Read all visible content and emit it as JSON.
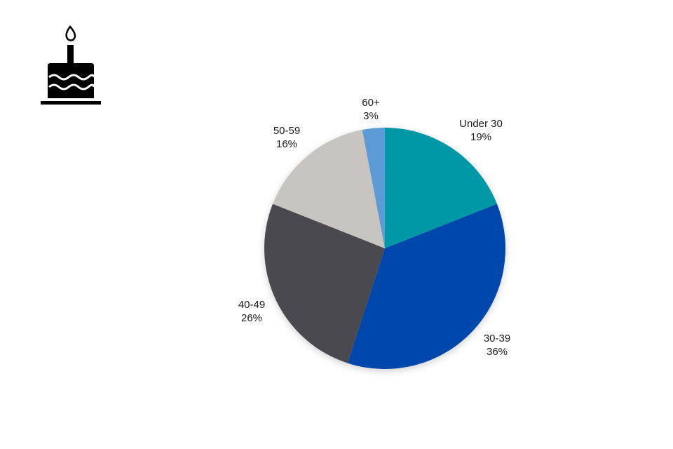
{
  "chart_data": {
    "type": "pie",
    "title": "",
    "slices": [
      {
        "label": "Under 30",
        "value": 19,
        "value_label": "19%",
        "color": "#0097a7"
      },
      {
        "label": "30-39",
        "value": 36,
        "value_label": "36%",
        "color": "#0047ab"
      },
      {
        "label": "40-49",
        "value": 26,
        "value_label": "26%",
        "color": "#4a4a4f"
      },
      {
        "label": "50-59",
        "value": 16,
        "value_label": "16%",
        "color": "#c8c4bf"
      },
      {
        "label": "60+",
        "value": 3,
        "value_label": "3%",
        "color": "#5b9bd5"
      }
    ],
    "start_angle": "12 o'clock",
    "direction": "clockwise",
    "legend": "none",
    "labels": "outside"
  },
  "icon": {
    "name": "birthday-cake-icon",
    "color": "#000000"
  }
}
